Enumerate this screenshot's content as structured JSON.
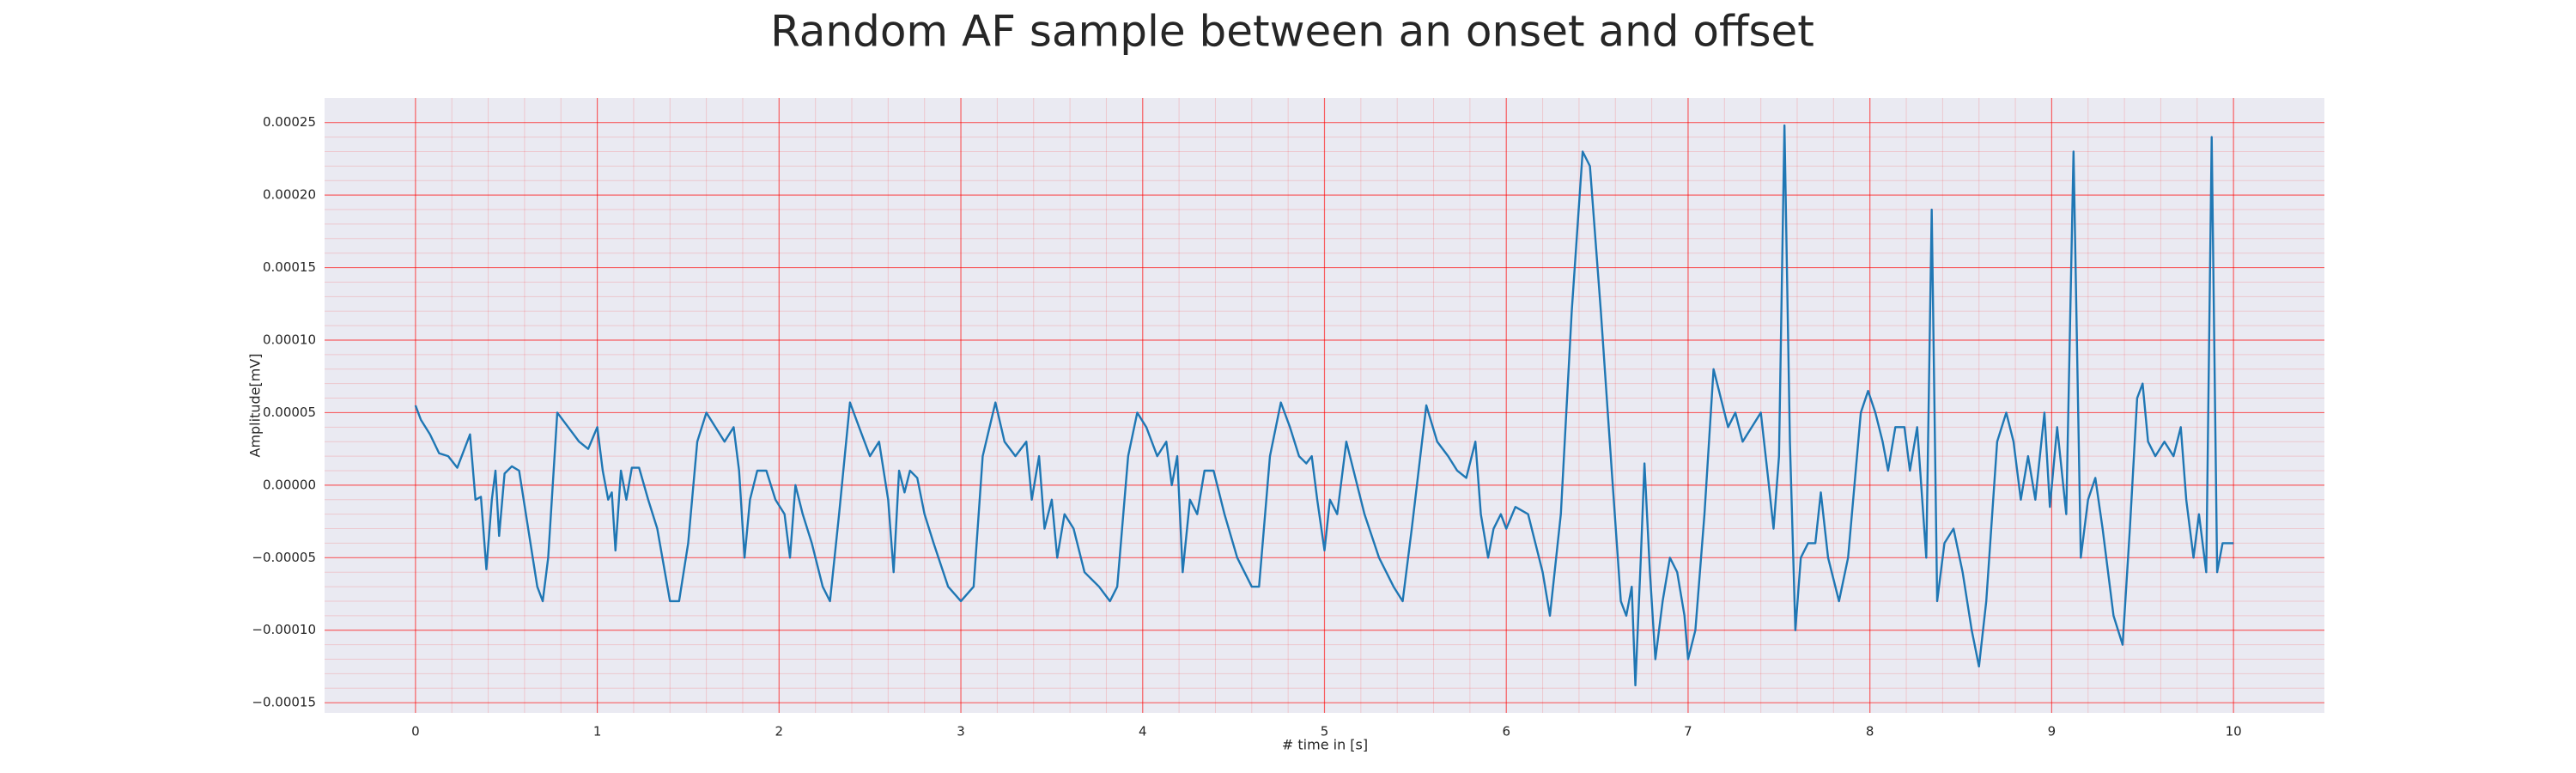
{
  "chart_data": {
    "type": "line",
    "title": "Random AF sample between an onset and offset",
    "xlabel": "# time in [s]",
    "ylabel": "Amplitude[mV]",
    "color": "#1f77b4",
    "grid": true,
    "grid_color": "#ff0000",
    "minor_grid": true,
    "background": "#eaeaf2",
    "xlim": [
      -0.5,
      10.5
    ],
    "ylim": [
      -0.000157,
      0.000267
    ],
    "xticks": [
      0,
      1,
      2,
      3,
      4,
      5,
      6,
      7,
      8,
      9,
      10
    ],
    "yticks": [
      {
        "value": -0.00015,
        "label": "−0.00015"
      },
      {
        "value": -0.0001,
        "label": "−0.00010"
      },
      {
        "value": -5e-05,
        "label": "−0.00005"
      },
      {
        "value": 0,
        "label": "0.00000"
      },
      {
        "value": 5e-05,
        "label": "0.00005"
      },
      {
        "value": 0.0001,
        "label": "0.00010"
      },
      {
        "value": 0.00015,
        "label": "0.00015"
      },
      {
        "value": 0.0002,
        "label": "0.00020"
      },
      {
        "value": 0.00025,
        "label": "0.00025"
      }
    ],
    "x": [
      0,
      0.03,
      0.08,
      0.13,
      0.18,
      0.23,
      0.3,
      0.33,
      0.36,
      0.39,
      0.42,
      0.44,
      0.46,
      0.49,
      0.53,
      0.57,
      0.62,
      0.67,
      0.7,
      0.73,
      0.78,
      0.84,
      0.9,
      0.95,
      1.0,
      1.03,
      1.06,
      1.08,
      1.1,
      1.13,
      1.16,
      1.19,
      1.23,
      1.28,
      1.33,
      1.4,
      1.45,
      1.5,
      1.55,
      1.6,
      1.65,
      1.7,
      1.75,
      1.78,
      1.81,
      1.84,
      1.88,
      1.93,
      1.98,
      2.03,
      2.06,
      2.09,
      2.13,
      2.18,
      2.24,
      2.28,
      2.33,
      2.39,
      2.44,
      2.5,
      2.55,
      2.6,
      2.63,
      2.66,
      2.69,
      2.72,
      2.76,
      2.8,
      2.85,
      2.93,
      3.0,
      3.07,
      3.12,
      3.19,
      3.24,
      3.3,
      3.36,
      3.39,
      3.43,
      3.46,
      3.5,
      3.53,
      3.57,
      3.62,
      3.68,
      3.76,
      3.82,
      3.86,
      3.92,
      3.97,
      4.02,
      4.08,
      4.13,
      4.16,
      4.19,
      4.22,
      4.26,
      4.3,
      4.34,
      4.39,
      4.45,
      4.52,
      4.6,
      4.64,
      4.7,
      4.76,
      4.81,
      4.86,
      4.9,
      4.93,
      4.96,
      5.0,
      5.03,
      5.07,
      5.12,
      5.16,
      5.22,
      5.3,
      5.38,
      5.43,
      5.48,
      5.56,
      5.62,
      5.68,
      5.73,
      5.78,
      5.83,
      5.86,
      5.9,
      5.93,
      5.97,
      6.0,
      6.05,
      6.12,
      6.2,
      6.24,
      6.3,
      6.36,
      6.42,
      6.46,
      6.52,
      6.58,
      6.63,
      6.66,
      6.69,
      6.71,
      6.74,
      6.76,
      6.79,
      6.82,
      6.86,
      6.9,
      6.94,
      6.98,
      7.0,
      7.04,
      7.09,
      7.14,
      7.18,
      7.22,
      7.26,
      7.3,
      7.35,
      7.4,
      7.44,
      7.47,
      7.5,
      7.53,
      7.56,
      7.59,
      7.62,
      7.66,
      7.7,
      7.73,
      7.77,
      7.83,
      7.88,
      7.95,
      7.99,
      8.03,
      8.07,
      8.1,
      8.14,
      8.19,
      8.22,
      8.26,
      8.31,
      8.34,
      8.37,
      8.41,
      8.46,
      8.51,
      8.56,
      8.6,
      8.64,
      8.7,
      8.75,
      8.79,
      8.83,
      8.87,
      8.91,
      8.96,
      8.99,
      9.03,
      9.08,
      9.12,
      9.16,
      9.2,
      9.24,
      9.28,
      9.34,
      9.39,
      9.43,
      9.47,
      9.5,
      9.53,
      9.57,
      9.62,
      9.67,
      9.71,
      9.74,
      9.78,
      9.81,
      9.85,
      9.88,
      9.91,
      9.94,
      9.97,
      10.0
    ],
    "values": [
      5.5e-05,
      4.5e-05,
      3.5e-05,
      2.2e-05,
      2e-05,
      1.2e-05,
      3.5e-05,
      -1e-05,
      -8e-06,
      -5.8e-05,
      -1e-05,
      1e-05,
      -3.5e-05,
      8e-06,
      1.3e-05,
      1e-05,
      -3e-05,
      -7e-05,
      -8e-05,
      -5e-05,
      5e-05,
      4e-05,
      3e-05,
      2.5e-05,
      4e-05,
      1e-05,
      -1e-05,
      -5e-06,
      -4.5e-05,
      1e-05,
      -1e-05,
      1.2e-05,
      1.2e-05,
      -1e-05,
      -3e-05,
      -8e-05,
      -8e-05,
      -4e-05,
      3e-05,
      5e-05,
      4e-05,
      3e-05,
      4e-05,
      1e-05,
      -5e-05,
      -1e-05,
      1e-05,
      1e-05,
      -1e-05,
      -2e-05,
      -5e-05,
      0,
      -2e-05,
      -4e-05,
      -7e-05,
      -8e-05,
      -2e-05,
      5.7e-05,
      4e-05,
      2e-05,
      3e-05,
      -1e-05,
      -6e-05,
      1e-05,
      -5e-06,
      1e-05,
      5e-06,
      -2e-05,
      -4e-05,
      -7e-05,
      -8e-05,
      -7e-05,
      2e-05,
      5.7e-05,
      3e-05,
      2e-05,
      3e-05,
      -1e-05,
      2e-05,
      -3e-05,
      -1e-05,
      -5e-05,
      -2e-05,
      -3e-05,
      -6e-05,
      -7e-05,
      -8e-05,
      -7e-05,
      2e-05,
      5e-05,
      4e-05,
      2e-05,
      3e-05,
      0,
      2e-05,
      -6e-05,
      -1e-05,
      -2e-05,
      1e-05,
      1e-05,
      -2e-05,
      -5e-05,
      -7e-05,
      -7e-05,
      2e-05,
      5.7e-05,
      4e-05,
      2e-05,
      1.5e-05,
      2e-05,
      -1e-05,
      -4.5e-05,
      -1e-05,
      -2e-05,
      3e-05,
      1e-05,
      -2e-05,
      -5e-05,
      -7e-05,
      -8e-05,
      -3e-05,
      5.5e-05,
      3e-05,
      2e-05,
      1e-05,
      5e-06,
      3e-05,
      -2e-05,
      -5e-05,
      -3e-05,
      -2e-05,
      -3e-05,
      -1.5e-05,
      -2e-05,
      -6e-05,
      -9e-05,
      -2e-05,
      0.00012,
      0.00023,
      0.00022,
      0.00012,
      1e-05,
      -8e-05,
      -9e-05,
      -7e-05,
      -0.000138,
      -5e-05,
      1.5e-05,
      -6e-05,
      -0.00012,
      -8e-05,
      -5e-05,
      -6e-05,
      -9e-05,
      -0.00012,
      -0.0001,
      -2e-05,
      8e-05,
      6e-05,
      4e-05,
      5e-05,
      3e-05,
      4e-05,
      5e-05,
      5e-06,
      -3e-05,
      2e-05,
      0.000248,
      3e-05,
      -0.0001,
      -5e-05,
      -4e-05,
      -4e-05,
      -5e-06,
      -5e-05,
      -8e-05,
      -5e-05,
      5e-05,
      6.5e-05,
      5e-05,
      3e-05,
      1e-05,
      4e-05,
      4e-05,
      1e-05,
      4e-05,
      -5e-05,
      0.00019,
      -8e-05,
      -4e-05,
      -3e-05,
      -6e-05,
      -0.0001,
      -0.000125,
      -8e-05,
      3e-05,
      5e-05,
      3e-05,
      -1e-05,
      2e-05,
      -1e-05,
      5e-05,
      -1.5e-05,
      4e-05,
      -2e-05,
      0.00023,
      -5e-05,
      -1e-05,
      5e-06,
      -3e-05,
      -9e-05,
      -0.00011,
      -3e-05,
      6e-05,
      7e-05,
      3e-05,
      2e-05,
      3e-05,
      2e-05,
      4e-05,
      -1e-05,
      -5e-05,
      -2e-05,
      -6e-05,
      0.00024,
      -6e-05,
      -4e-05,
      -4e-05,
      -4e-05
    ]
  }
}
